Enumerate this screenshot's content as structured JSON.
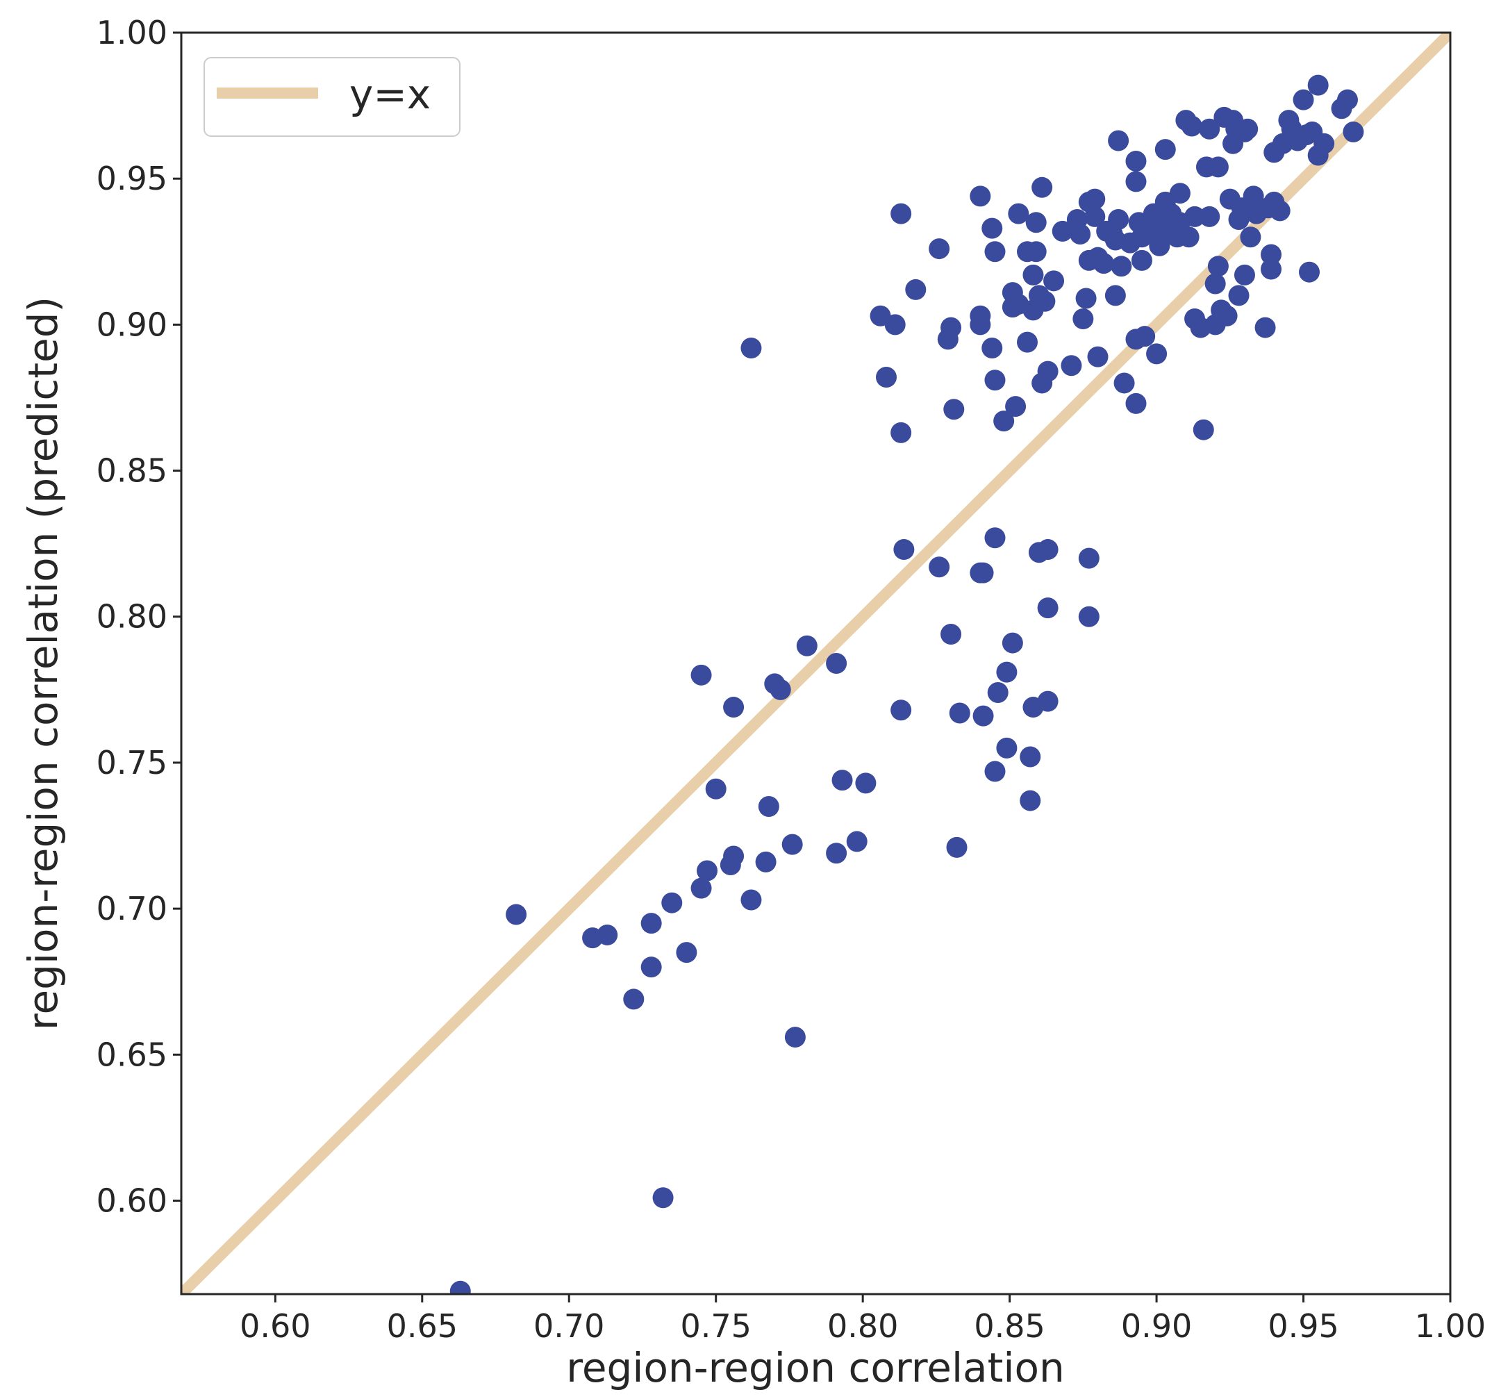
{
  "chart_data": {
    "type": "scatter",
    "xlabel": "region-region correlation",
    "ylabel": "region-region correlation (predicted)",
    "xlim": [
      0.568,
      1.0
    ],
    "ylim": [
      0.568,
      1.0
    ],
    "xticks": [
      "0.60",
      "0.65",
      "0.70",
      "0.75",
      "0.80",
      "0.85",
      "0.90",
      "0.95",
      "1.00"
    ],
    "yticks": [
      "0.60",
      "0.65",
      "0.70",
      "0.75",
      "0.80",
      "0.85",
      "0.90",
      "0.95",
      "1.00"
    ],
    "grid": false,
    "legend": {
      "placement": "top-left",
      "entries": [
        "y=x"
      ]
    },
    "colors": {
      "points": "#3a4a9c",
      "reference_line": "#e8cfa9",
      "axes": "#262626"
    },
    "reference_line": {
      "label": "y=x",
      "x": [
        0.568,
        1.0
      ],
      "y": [
        0.568,
        1.0
      ]
    },
    "points": [
      [
        0.663,
        0.569
      ],
      [
        0.682,
        0.698
      ],
      [
        0.708,
        0.69
      ],
      [
        0.713,
        0.691
      ],
      [
        0.722,
        0.669
      ],
      [
        0.728,
        0.695
      ],
      [
        0.728,
        0.68
      ],
      [
        0.732,
        0.601
      ],
      [
        0.735,
        0.702
      ],
      [
        0.74,
        0.685
      ],
      [
        0.745,
        0.707
      ],
      [
        0.747,
        0.713
      ],
      [
        0.745,
        0.78
      ],
      [
        0.75,
        0.741
      ],
      [
        0.756,
        0.769
      ],
      [
        0.756,
        0.718
      ],
      [
        0.755,
        0.715
      ],
      [
        0.762,
        0.703
      ],
      [
        0.762,
        0.892
      ],
      [
        0.767,
        0.716
      ],
      [
        0.768,
        0.735
      ],
      [
        0.77,
        0.777
      ],
      [
        0.772,
        0.775
      ],
      [
        0.776,
        0.722
      ],
      [
        0.777,
        0.656
      ],
      [
        0.781,
        0.79
      ],
      [
        0.791,
        0.784
      ],
      [
        0.791,
        0.719
      ],
      [
        0.793,
        0.744
      ],
      [
        0.798,
        0.723
      ],
      [
        0.801,
        0.743
      ],
      [
        0.806,
        0.903
      ],
      [
        0.808,
        0.882
      ],
      [
        0.811,
        0.9
      ],
      [
        0.813,
        0.863
      ],
      [
        0.813,
        0.938
      ],
      [
        0.813,
        0.768
      ],
      [
        0.814,
        0.823
      ],
      [
        0.818,
        0.912
      ],
      [
        0.826,
        0.926
      ],
      [
        0.826,
        0.817
      ],
      [
        0.829,
        0.895
      ],
      [
        0.83,
        0.899
      ],
      [
        0.83,
        0.794
      ],
      [
        0.831,
        0.871
      ],
      [
        0.833,
        0.767
      ],
      [
        0.832,
        0.721
      ],
      [
        0.84,
        0.903
      ],
      [
        0.84,
        0.9
      ],
      [
        0.84,
        0.944
      ],
      [
        0.84,
        0.815
      ],
      [
        0.841,
        0.815
      ],
      [
        0.841,
        0.766
      ],
      [
        0.844,
        0.892
      ],
      [
        0.844,
        0.933
      ],
      [
        0.845,
        0.827
      ],
      [
        0.845,
        0.925
      ],
      [
        0.845,
        0.881
      ],
      [
        0.845,
        0.747
      ],
      [
        0.846,
        0.774
      ],
      [
        0.848,
        0.867
      ],
      [
        0.849,
        0.781
      ],
      [
        0.849,
        0.755
      ],
      [
        0.851,
        0.791
      ],
      [
        0.851,
        0.906
      ],
      [
        0.851,
        0.911
      ],
      [
        0.852,
        0.872
      ],
      [
        0.853,
        0.938
      ],
      [
        0.853,
        0.907
      ],
      [
        0.856,
        0.925
      ],
      [
        0.856,
        0.894
      ],
      [
        0.857,
        0.752
      ],
      [
        0.857,
        0.737
      ],
      [
        0.858,
        0.917
      ],
      [
        0.858,
        0.769
      ],
      [
        0.858,
        0.905
      ],
      [
        0.859,
        0.935
      ],
      [
        0.859,
        0.925
      ],
      [
        0.86,
        0.91
      ],
      [
        0.86,
        0.822
      ],
      [
        0.861,
        0.88
      ],
      [
        0.861,
        0.947
      ],
      [
        0.862,
        0.908
      ],
      [
        0.863,
        0.884
      ],
      [
        0.863,
        0.803
      ],
      [
        0.863,
        0.771
      ],
      [
        0.863,
        0.823
      ],
      [
        0.865,
        0.915
      ],
      [
        0.868,
        0.932
      ],
      [
        0.871,
        0.886
      ],
      [
        0.873,
        0.936
      ],
      [
        0.874,
        0.931
      ],
      [
        0.875,
        0.902
      ],
      [
        0.876,
        0.909
      ],
      [
        0.877,
        0.942
      ],
      [
        0.877,
        0.8
      ],
      [
        0.877,
        0.82
      ],
      [
        0.877,
        0.922
      ],
      [
        0.879,
        0.943
      ],
      [
        0.879,
        0.937
      ],
      [
        0.88,
        0.923
      ],
      [
        0.88,
        0.889
      ],
      [
        0.882,
        0.921
      ],
      [
        0.883,
        0.932
      ],
      [
        0.885,
        0.931
      ],
      [
        0.886,
        0.91
      ],
      [
        0.886,
        0.929
      ],
      [
        0.887,
        0.963
      ],
      [
        0.887,
        0.936
      ],
      [
        0.888,
        0.92
      ],
      [
        0.889,
        0.88
      ],
      [
        0.891,
        0.928
      ],
      [
        0.893,
        0.873
      ],
      [
        0.893,
        0.895
      ],
      [
        0.893,
        0.956
      ],
      [
        0.893,
        0.949
      ],
      [
        0.894,
        0.935
      ],
      [
        0.895,
        0.93
      ],
      [
        0.895,
        0.922
      ],
      [
        0.896,
        0.896
      ],
      [
        0.897,
        0.932
      ],
      [
        0.898,
        0.935
      ],
      [
        0.899,
        0.938
      ],
      [
        0.9,
        0.89
      ],
      [
        0.9,
        0.93
      ],
      [
        0.901,
        0.927
      ],
      [
        0.902,
        0.936
      ],
      [
        0.903,
        0.942
      ],
      [
        0.903,
        0.96
      ],
      [
        0.904,
        0.932
      ],
      [
        0.905,
        0.938
      ],
      [
        0.907,
        0.93
      ],
      [
        0.908,
        0.935
      ],
      [
        0.908,
        0.945
      ],
      [
        0.91,
        0.97
      ],
      [
        0.911,
        0.93
      ],
      [
        0.912,
        0.968
      ],
      [
        0.913,
        0.937
      ],
      [
        0.913,
        0.902
      ],
      [
        0.915,
        0.899
      ],
      [
        0.916,
        0.864
      ],
      [
        0.917,
        0.954
      ],
      [
        0.918,
        0.937
      ],
      [
        0.918,
        0.967
      ],
      [
        0.92,
        0.914
      ],
      [
        0.92,
        0.9
      ],
      [
        0.921,
        0.92
      ],
      [
        0.921,
        0.954
      ],
      [
        0.922,
        0.905
      ],
      [
        0.923,
        0.971
      ],
      [
        0.924,
        0.903
      ],
      [
        0.925,
        0.943
      ],
      [
        0.926,
        0.962
      ],
      [
        0.926,
        0.97
      ],
      [
        0.927,
        0.967
      ],
      [
        0.928,
        0.91
      ],
      [
        0.928,
        0.936
      ],
      [
        0.929,
        0.94
      ],
      [
        0.93,
        0.966
      ],
      [
        0.93,
        0.917
      ],
      [
        0.931,
        0.967
      ],
      [
        0.932,
        0.93
      ],
      [
        0.933,
        0.944
      ],
      [
        0.934,
        0.938
      ],
      [
        0.937,
        0.899
      ],
      [
        0.938,
        0.94
      ],
      [
        0.939,
        0.919
      ],
      [
        0.939,
        0.924
      ],
      [
        0.94,
        0.942
      ],
      [
        0.94,
        0.959
      ],
      [
        0.942,
        0.939
      ],
      [
        0.943,
        0.962
      ],
      [
        0.945,
        0.97
      ],
      [
        0.946,
        0.967
      ],
      [
        0.948,
        0.963
      ],
      [
        0.95,
        0.977
      ],
      [
        0.951,
        0.965
      ],
      [
        0.952,
        0.918
      ],
      [
        0.953,
        0.966
      ],
      [
        0.955,
        0.982
      ],
      [
        0.955,
        0.958
      ],
      [
        0.957,
        0.962
      ],
      [
        0.963,
        0.974
      ],
      [
        0.965,
        0.977
      ],
      [
        0.967,
        0.966
      ]
    ]
  }
}
